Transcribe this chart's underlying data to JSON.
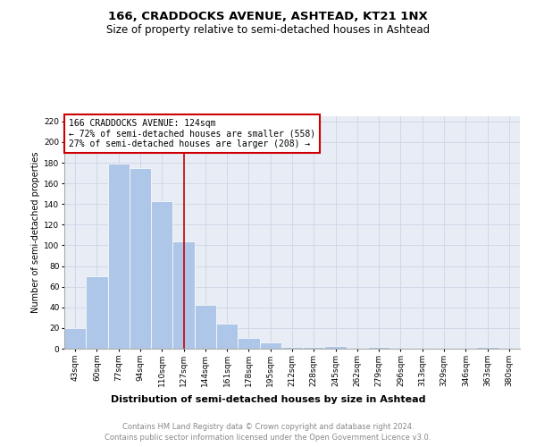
{
  "title": "166, CRADDOCKS AVENUE, ASHTEAD, KT21 1NX",
  "subtitle": "Size of property relative to semi-detached houses in Ashtead",
  "xlabel": "Distribution of semi-detached houses by size in Ashtead",
  "ylabel": "Number of semi-detached properties",
  "bin_labels": [
    "43sqm",
    "60sqm",
    "77sqm",
    "94sqm",
    "110sqm",
    "127sqm",
    "144sqm",
    "161sqm",
    "178sqm",
    "195sqm",
    "212sqm",
    "228sqm",
    "245sqm",
    "262sqm",
    "279sqm",
    "296sqm",
    "313sqm",
    "329sqm",
    "346sqm",
    "363sqm",
    "380sqm"
  ],
  "bar_values": [
    20,
    70,
    179,
    175,
    143,
    104,
    42,
    24,
    10,
    6,
    2,
    2,
    3,
    0,
    2,
    0,
    0,
    0,
    0,
    2,
    0
  ],
  "bar_color": "#aec6e8",
  "bar_edge_color": "#ffffff",
  "vline_x": 5,
  "annotation_text_line1": "166 CRADDOCKS AVENUE: 124sqm",
  "annotation_text_line2": "← 72% of semi-detached houses are smaller (558)",
  "annotation_text_line3": "27% of semi-detached houses are larger (208) →",
  "annotation_box_color": "#ffffff",
  "annotation_box_edge_color": "#cc0000",
  "vline_color": "#cc0000",
  "ylim": [
    0,
    225
  ],
  "yticks": [
    0,
    20,
    40,
    60,
    80,
    100,
    120,
    140,
    160,
    180,
    200,
    220
  ],
  "grid_color": "#d0d8e8",
  "background_color": "#e8edf5",
  "footer_line1": "Contains HM Land Registry data © Crown copyright and database right 2024.",
  "footer_line2": "Contains public sector information licensed under the Open Government Licence v3.0.",
  "title_fontsize": 9.5,
  "subtitle_fontsize": 8.5,
  "xlabel_fontsize": 8,
  "ylabel_fontsize": 7,
  "tick_fontsize": 6.5,
  "footer_fontsize": 6,
  "annotation_fontsize": 7
}
